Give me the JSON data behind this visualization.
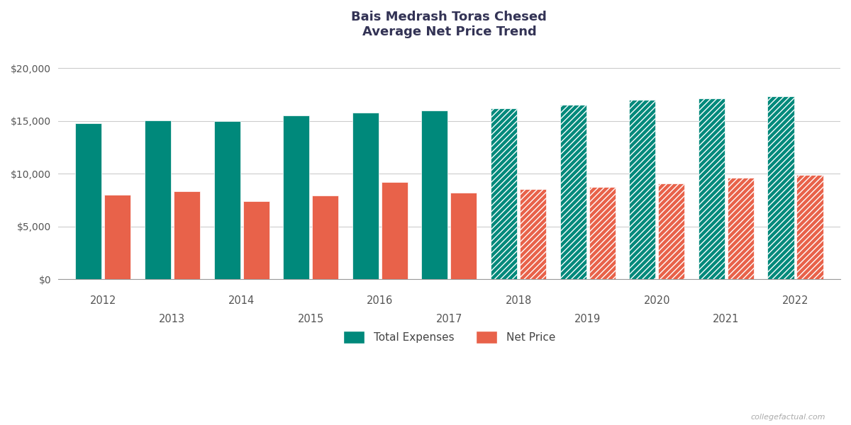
{
  "title_line1": "Bais Medrash Toras Chesed",
  "title_line2": "Average Net Price Trend",
  "years": [
    2012,
    2013,
    2014,
    2015,
    2016,
    2017,
    2018,
    2019,
    2020,
    2021,
    2022
  ],
  "total_expenses": [
    14800,
    15050,
    15000,
    15500,
    15800,
    16000,
    16200,
    16500,
    17000,
    17100,
    17300
  ],
  "net_price": [
    8000,
    8300,
    7400,
    7900,
    9200,
    8200,
    8500,
    8750,
    9100,
    9600,
    9900
  ],
  "solid_years": [
    2012,
    2013,
    2014,
    2015,
    2016,
    2017
  ],
  "hatched_years": [
    2018,
    2019,
    2020,
    2021,
    2022
  ],
  "teal_color": "#00897B",
  "salmon_color": "#E8624A",
  "background_color": "#FFFFFF",
  "grid_color": "#CCCCCC",
  "title_color": "#333355",
  "tick_label_color": "#555555",
  "legend_label_color": "#444444",
  "ylim": [
    0,
    22000
  ],
  "yticks": [
    0,
    5000,
    10000,
    15000,
    20000
  ],
  "legend_labels": [
    "Total Expenses",
    "Net Price"
  ],
  "watermark": "collegefactual.com",
  "bar_width": 0.38,
  "bar_gap": 0.04
}
